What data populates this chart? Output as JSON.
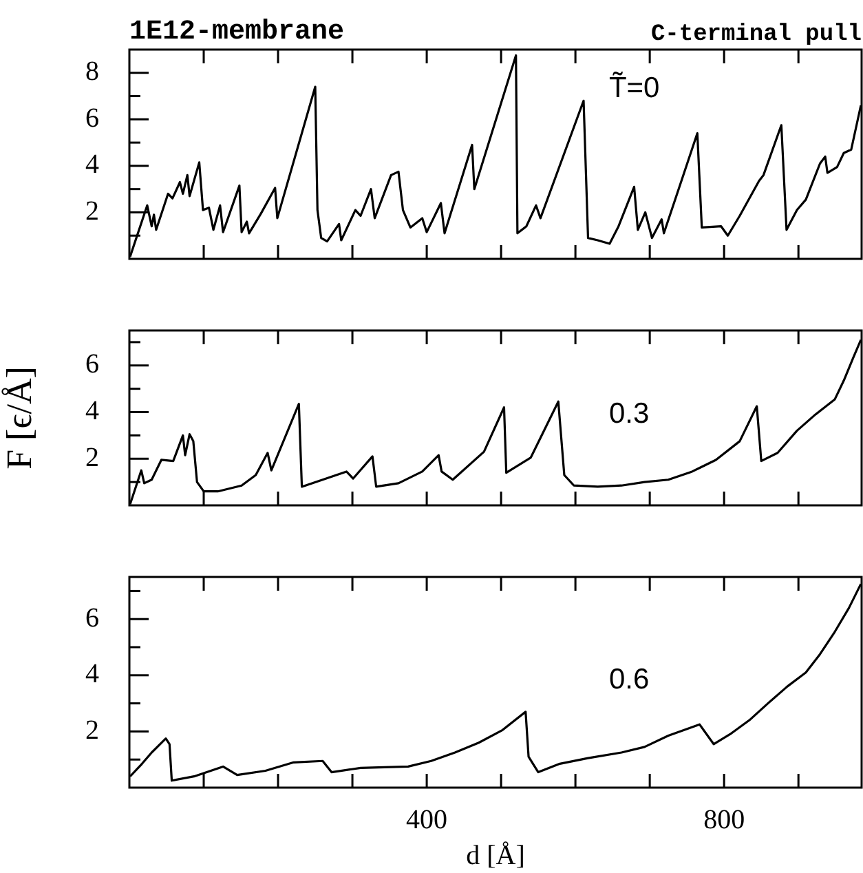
{
  "chart_data": [
    {
      "type": "line",
      "title": "1E12-membrane",
      "subtitle": "C-terminal pull",
      "annotations": [
        "T̃=0"
      ],
      "color": "#000000",
      "tick_labels": "y",
      "xlim": [
        0,
        985
      ],
      "xticks": [
        {
          "value": 100,
          "label": null
        },
        {
          "value": 200,
          "label": null
        },
        {
          "value": 300,
          "label": null
        },
        {
          "value": 400,
          "label": null
        },
        {
          "value": 500,
          "label": null
        },
        {
          "value": 600,
          "label": null
        },
        {
          "value": 700,
          "label": null
        },
        {
          "value": 800,
          "label": null
        },
        {
          "value": 900,
          "label": null
        }
      ],
      "ylim": [
        0,
        9
      ],
      "yticks": [
        {
          "value": 1,
          "label": null
        },
        2,
        {
          "value": 3,
          "label": null
        },
        4,
        {
          "value": 5,
          "label": null
        },
        6,
        {
          "value": 7,
          "label": null
        },
        8
      ],
      "x": [
        1,
        24,
        30,
        33,
        36,
        52,
        58,
        68,
        72,
        78,
        81,
        94,
        99,
        107,
        113,
        122,
        126,
        148,
        151,
        158,
        161,
        177,
        196,
        199,
        250,
        253,
        258,
        266,
        282,
        285,
        304,
        311,
        325,
        330,
        352,
        362,
        368,
        378,
        394,
        400,
        419,
        424,
        461,
        464,
        520,
        522,
        534,
        547,
        553,
        611,
        617,
        630,
        646,
        658,
        679,
        684,
        694,
        703,
        716,
        719,
        764,
        770,
        796,
        805,
        821,
        847,
        853,
        877,
        884,
        898,
        910,
        929,
        936,
        939,
        952,
        961,
        971,
        984
      ],
      "values": [
        0.1,
        2.3,
        1.4,
        1.9,
        1.25,
        2.8,
        2.6,
        3.3,
        2.8,
        3.6,
        2.7,
        4.15,
        2.1,
        2.2,
        1.25,
        2.3,
        1.15,
        3.15,
        1.15,
        1.6,
        1.1,
        1.95,
        3.05,
        1.75,
        7.4,
        2.1,
        0.9,
        0.75,
        1.5,
        0.8,
        2.1,
        1.85,
        3.0,
        1.75,
        3.6,
        3.75,
        2.1,
        1.35,
        1.75,
        1.15,
        2.4,
        1.1,
        4.9,
        3.0,
        8.75,
        1.1,
        1.4,
        2.3,
        1.75,
        6.8,
        0.9,
        0.8,
        0.65,
        1.4,
        3.1,
        1.25,
        2.0,
        0.9,
        1.7,
        1.1,
        5.4,
        1.35,
        1.4,
        1.0,
        1.85,
        3.35,
        3.6,
        5.75,
        1.25,
        2.1,
        2.55,
        4.1,
        4.4,
        3.7,
        3.95,
        4.55,
        4.7,
        6.6
      ]
    },
    {
      "type": "line",
      "ylabel": "F [ϵ/Å]",
      "annotations": [
        "0.3"
      ],
      "color": "#000000",
      "tick_labels": "y",
      "xlim": [
        0,
        985
      ],
      "xticks": [
        {
          "value": 100,
          "label": null
        },
        {
          "value": 200,
          "label": null
        },
        {
          "value": 300,
          "label": null
        },
        {
          "value": 400,
          "label": null
        },
        {
          "value": 500,
          "label": null
        },
        {
          "value": 600,
          "label": null
        },
        {
          "value": 700,
          "label": null
        },
        {
          "value": 800,
          "label": null
        },
        {
          "value": 900,
          "label": null
        }
      ],
      "ylim": [
        0,
        7.5
      ],
      "yticks": [
        {
          "value": 1,
          "label": null
        },
        2,
        {
          "value": 3,
          "label": null
        },
        4,
        {
          "value": 5,
          "label": null
        },
        6,
        {
          "value": 7,
          "label": null
        }
      ],
      "x": [
        1,
        16,
        20,
        30,
        43,
        59,
        72,
        75,
        81,
        86,
        91,
        100,
        119,
        151,
        170,
        186,
        191,
        228,
        232,
        260,
        292,
        301,
        327,
        332,
        362,
        394,
        416,
        420,
        435,
        477,
        504,
        507,
        540,
        577,
        585,
        598,
        630,
        662,
        693,
        725,
        757,
        789,
        821,
        844,
        850,
        872,
        898,
        923,
        949,
        961,
        974,
        984
      ],
      "values": [
        0.05,
        1.5,
        0.95,
        1.1,
        1.95,
        1.9,
        3.0,
        2.15,
        3.05,
        2.75,
        1.0,
        0.6,
        0.6,
        0.85,
        1.3,
        2.25,
        1.5,
        4.35,
        0.8,
        1.1,
        1.45,
        1.15,
        2.1,
        0.8,
        0.95,
        1.45,
        2.15,
        1.45,
        1.1,
        2.3,
        4.2,
        1.4,
        2.05,
        4.45,
        1.3,
        0.85,
        0.8,
        0.85,
        1.0,
        1.1,
        1.45,
        1.95,
        2.75,
        4.25,
        1.9,
        2.25,
        3.2,
        3.9,
        4.55,
        5.35,
        6.35,
        7.1
      ]
    },
    {
      "type": "line",
      "xlabel": "d [Å]",
      "annotations": [
        "0.6"
      ],
      "color": "#000000",
      "xlim": [
        0,
        985
      ],
      "xticks": [
        {
          "value": 100,
          "label": null
        },
        {
          "value": 200,
          "label": null
        },
        {
          "value": 300,
          "label": null
        },
        400,
        {
          "value": 500,
          "label": null
        },
        {
          "value": 600,
          "label": null
        },
        {
          "value": 700,
          "label": null
        },
        800,
        {
          "value": 900,
          "label": null
        }
      ],
      "ylim": [
        0,
        7.5
      ],
      "yticks": [
        {
          "value": 1,
          "label": null
        },
        2,
        {
          "value": 3,
          "label": null
        },
        4,
        {
          "value": 5,
          "label": null
        },
        6,
        {
          "value": 7,
          "label": null
        }
      ],
      "x": [
        1,
        17,
        30,
        49,
        54,
        57,
        87,
        126,
        145,
        183,
        221,
        260,
        272,
        311,
        375,
        406,
        438,
        470,
        502,
        533,
        537,
        550,
        579,
        617,
        662,
        693,
        725,
        767,
        786,
        808,
        834,
        859,
        885,
        910,
        929,
        949,
        968,
        984
      ],
      "values": [
        0.4,
        0.85,
        1.25,
        1.75,
        1.55,
        0.25,
        0.4,
        0.75,
        0.45,
        0.6,
        0.9,
        0.95,
        0.55,
        0.7,
        0.75,
        0.95,
        1.25,
        1.6,
        2.05,
        2.7,
        1.1,
        0.55,
        0.85,
        1.05,
        1.25,
        1.45,
        1.85,
        2.25,
        1.55,
        1.9,
        2.4,
        3.0,
        3.6,
        4.1,
        4.75,
        5.55,
        6.4,
        7.25
      ]
    }
  ]
}
